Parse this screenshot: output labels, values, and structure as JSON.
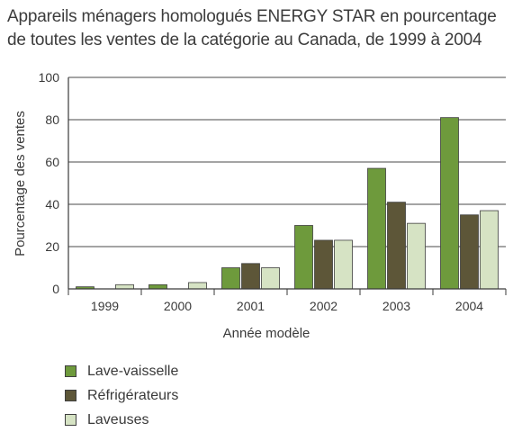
{
  "chart_data": {
    "type": "bar",
    "title_lines": [
      "Appareils ménagers homologués ENERGY STAR en pourcentage",
      "de toutes les ventes de la catégorie au Canada, de 1999 à 2004"
    ],
    "xlabel": "Année modèle",
    "ylabel": "Pourcentage des ventes",
    "categories": [
      "1999",
      "2000",
      "2001",
      "2002",
      "2003",
      "2004"
    ],
    "ylim": [
      0,
      100
    ],
    "yticks": [
      0,
      20,
      40,
      60,
      80,
      100
    ],
    "grid": "horizontal",
    "legend_placement": "bottom-left",
    "series": [
      {
        "name": "Lave-vaisselle",
        "color": "#6e9a3c",
        "values": [
          1,
          2,
          10,
          30,
          57,
          81
        ]
      },
      {
        "name": "Réfrigérateurs",
        "color": "#5d5638",
        "values": [
          0,
          0,
          12,
          23,
          41,
          35
        ]
      },
      {
        "name": "Laveuses",
        "color": "#d6e3c4",
        "values": [
          2,
          3,
          10,
          23,
          31,
          37
        ]
      }
    ]
  }
}
